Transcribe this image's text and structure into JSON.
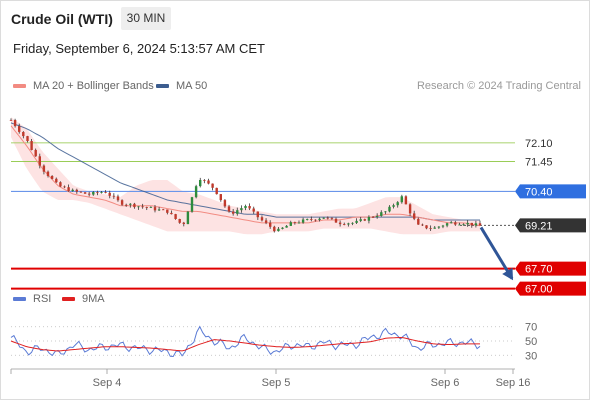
{
  "header": {
    "title": "Crude Oil (WTI)",
    "interval": "30 MIN",
    "timestamp": "Friday, September 6, 2024 5:13:57 AM CET"
  },
  "legend": {
    "bollinger": "MA 20 + Bollinger Bands",
    "ma50": "MA 50",
    "credit": "Research © 2024 Trading Central",
    "colors": {
      "bollinger": "#f28b82",
      "ma50": "#3c5d8f"
    }
  },
  "rsi_legend": {
    "rsi": "RSI",
    "ma": "9MA",
    "colors": {
      "rsi": "#5b7bd5",
      "ma": "#e02020"
    }
  },
  "chart_data": [
    {
      "type": "candlestick",
      "price_range": [
        66.6,
        73.6
      ],
      "x_categories": [
        "Sep 4",
        "Sep 5",
        "Sep 6",
        "Sep 16"
      ],
      "levels": [
        {
          "label": "72.10",
          "value": 72.1,
          "kind": "resistance-thin",
          "color": "#8cc63f"
        },
        {
          "label": "71.45",
          "value": 71.45,
          "kind": "resistance-thin",
          "color": "#8cc63f"
        },
        {
          "label": "70.40",
          "value": 70.4,
          "kind": "pivot",
          "color": "#2f6fe0"
        },
        {
          "label": "69.21",
          "value": 69.21,
          "kind": "last-price",
          "color": "#333333"
        },
        {
          "label": "67.70",
          "value": 67.7,
          "kind": "target",
          "color": "#e00000"
        },
        {
          "label": "67.00",
          "value": 67.0,
          "kind": "target",
          "color": "#e00000"
        }
      ],
      "price_path": [
        72.9,
        72.2,
        71.2,
        70.6,
        70.4,
        70.3,
        70.4,
        70.0,
        69.9,
        69.8,
        69.7,
        69.2,
        70.9,
        70.5,
        69.6,
        69.9,
        69.4,
        69.0,
        69.3,
        69.4,
        69.5,
        69.3,
        69.3,
        69.5,
        69.7,
        70.2,
        69.2,
        69.1,
        69.3,
        69.3,
        69.2
      ],
      "bollinger_upper": [
        73.0,
        72.6,
        71.8,
        71.2,
        70.6,
        70.4,
        70.3,
        70.2,
        70.6,
        70.8,
        70.8,
        70.4,
        70.3,
        70.1,
        69.9,
        69.8,
        69.7,
        69.6,
        69.6,
        69.6,
        69.7,
        69.8,
        69.8,
        70.0,
        70.2,
        70.2,
        69.9,
        69.6,
        69.5,
        69.4,
        69.4
      ],
      "bollinger_lower": [
        72.3,
        71.2,
        70.4,
        70.1,
        70.1,
        70.0,
        69.8,
        69.6,
        69.4,
        69.2,
        69.0,
        69.0,
        69.0,
        69.0,
        69.0,
        68.9,
        68.9,
        69.0,
        69.0,
        69.0,
        69.1,
        69.1,
        69.1,
        69.1,
        69.0,
        68.9,
        68.9,
        68.9,
        69.0,
        69.0,
        69.0
      ],
      "ma20": [
        72.7,
        72.0,
        71.2,
        70.6,
        70.3,
        70.2,
        70.1,
        69.9,
        69.9,
        69.9,
        69.8,
        69.7,
        69.7,
        69.6,
        69.5,
        69.4,
        69.3,
        69.3,
        69.3,
        69.3,
        69.4,
        69.4,
        69.5,
        69.5,
        69.6,
        69.6,
        69.5,
        69.4,
        69.3,
        69.3,
        69.2
      ],
      "ma50": [
        72.8,
        72.6,
        72.3,
        71.9,
        71.6,
        71.3,
        71.0,
        70.7,
        70.5,
        70.3,
        70.1,
        70.0,
        69.9,
        69.8,
        69.7,
        69.6,
        69.6,
        69.5,
        69.5,
        69.5,
        69.5,
        69.5,
        69.5,
        69.5,
        69.5,
        69.5,
        69.5,
        69.4,
        69.4,
        69.4,
        69.4
      ],
      "forecast": {
        "from": 69.21,
        "to": 67.7,
        "color": "#2f5597"
      }
    },
    {
      "type": "line",
      "name": "RSI",
      "y_ticks": [
        70,
        50,
        30
      ],
      "ylim": [
        15,
        85
      ],
      "rsi": [
        55,
        35,
        40,
        30,
        45,
        38,
        42,
        44,
        40,
        38,
        35,
        30,
        65,
        50,
        40,
        55,
        40,
        35,
        45,
        42,
        48,
        44,
        45,
        55,
        62,
        58,
        40,
        45,
        47,
        48,
        45
      ],
      "rsi_ma": [
        50,
        42,
        38,
        36,
        38,
        40,
        42,
        42,
        41,
        40,
        38,
        36,
        45,
        52,
        50,
        47,
        44,
        42,
        41,
        42,
        44,
        46,
        47,
        49,
        54,
        55,
        50,
        46,
        45,
        46,
        46
      ]
    }
  ]
}
